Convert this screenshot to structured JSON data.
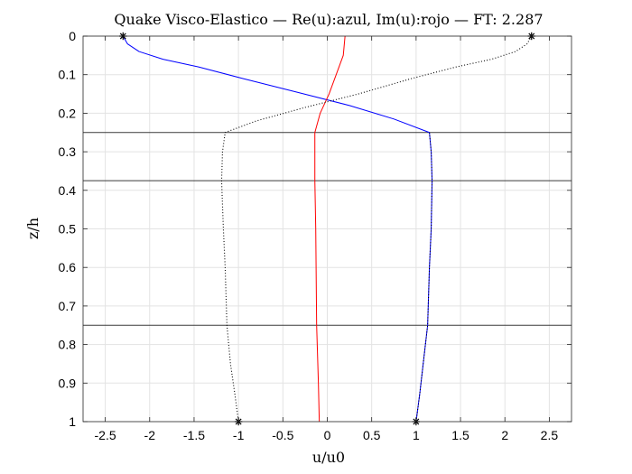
{
  "chart_data": {
    "type": "line",
    "title": "Quake Visco-Elastico — Re(u):azul, Im(u):rojo — FT: 2.287",
    "xlabel": "u/u0",
    "ylabel": "z/h",
    "xlim": [
      -2.75,
      2.75
    ],
    "ylim": [
      0,
      1
    ],
    "y_reversed": true,
    "grid": true,
    "x_ticks": [
      -2.5,
      -2,
      -1.5,
      -1,
      -0.5,
      0,
      0.5,
      1,
      1.5,
      2,
      2.5
    ],
    "x_tick_labels": [
      "-2.5",
      "-2",
      "-1.5",
      "-1",
      "-0.5",
      "0",
      "0.5",
      "1",
      "1.5",
      "2",
      "2.5"
    ],
    "y_ticks": [
      0,
      0.1,
      0.2,
      0.3,
      0.4,
      0.5,
      0.6,
      0.7,
      0.8,
      0.9,
      1
    ],
    "y_tick_labels": [
      "0",
      "0.1",
      "0.2",
      "0.3",
      "0.4",
      "0.5",
      "0.6",
      "0.7",
      "0.8",
      "0.9",
      "1"
    ],
    "layer_boundaries": [
      0.25,
      0.375,
      0.75
    ],
    "series": [
      {
        "key": "real",
        "color": "#0000ff",
        "style": "solid",
        "points": [
          [
            -2.3,
            0
          ],
          [
            -2.25,
            0.02
          ],
          [
            -2.12,
            0.04
          ],
          [
            -1.85,
            0.06
          ],
          [
            -1.45,
            0.08
          ],
          [
            -0.95,
            0.11
          ],
          [
            -0.35,
            0.145
          ],
          [
            0.25,
            0.18
          ],
          [
            0.75,
            0.215
          ],
          [
            1.15,
            0.25
          ],
          [
            1.17,
            0.3
          ],
          [
            1.18,
            0.375
          ],
          [
            1.17,
            0.5
          ],
          [
            1.15,
            0.6
          ],
          [
            1.13,
            0.75
          ],
          [
            1.08,
            0.85
          ],
          [
            1.04,
            0.93
          ],
          [
            1.0,
            1.0
          ]
        ]
      },
      {
        "key": "imag",
        "color": "#ff0000",
        "style": "solid",
        "points": [
          [
            0.2,
            0
          ],
          [
            0.18,
            0.05
          ],
          [
            0.1,
            0.1
          ],
          [
            0.02,
            0.15
          ],
          [
            -0.08,
            0.2
          ],
          [
            -0.14,
            0.25
          ],
          [
            -0.14,
            0.375
          ],
          [
            -0.13,
            0.5
          ],
          [
            -0.12,
            0.75
          ],
          [
            -0.1,
            0.9
          ],
          [
            -0.09,
            1.0
          ]
        ]
      },
      {
        "key": "envelope_pos",
        "color": "#000000",
        "style": "dotted",
        "points": [
          [
            2.3,
            0
          ],
          [
            2.25,
            0.02
          ],
          [
            2.12,
            0.04
          ],
          [
            1.85,
            0.06
          ],
          [
            1.45,
            0.08
          ],
          [
            0.95,
            0.11
          ],
          [
            0.35,
            0.15
          ],
          [
            -0.25,
            0.185
          ],
          [
            -0.8,
            0.22
          ],
          [
            -1.15,
            0.25
          ],
          [
            -1.18,
            0.3
          ],
          [
            -1.19,
            0.375
          ],
          [
            -1.17,
            0.5
          ],
          [
            -1.15,
            0.6
          ],
          [
            -1.13,
            0.75
          ],
          [
            -1.09,
            0.85
          ],
          [
            -1.04,
            0.93
          ],
          [
            -1.0,
            1.0
          ]
        ]
      },
      {
        "key": "envelope_neg",
        "color": "#000000",
        "style": "dotted",
        "points": [
          [
            1.15,
            0.25
          ],
          [
            1.17,
            0.3
          ],
          [
            1.18,
            0.375
          ],
          [
            1.17,
            0.5
          ],
          [
            1.15,
            0.6
          ],
          [
            1.13,
            0.75
          ],
          [
            1.08,
            0.85
          ],
          [
            1.04,
            0.93
          ],
          [
            1.0,
            1.0
          ]
        ]
      }
    ],
    "markers": [
      [
        -2.3,
        0
      ],
      [
        2.3,
        0
      ],
      [
        -1.0,
        1.0
      ],
      [
        1.0,
        1.0
      ]
    ]
  }
}
